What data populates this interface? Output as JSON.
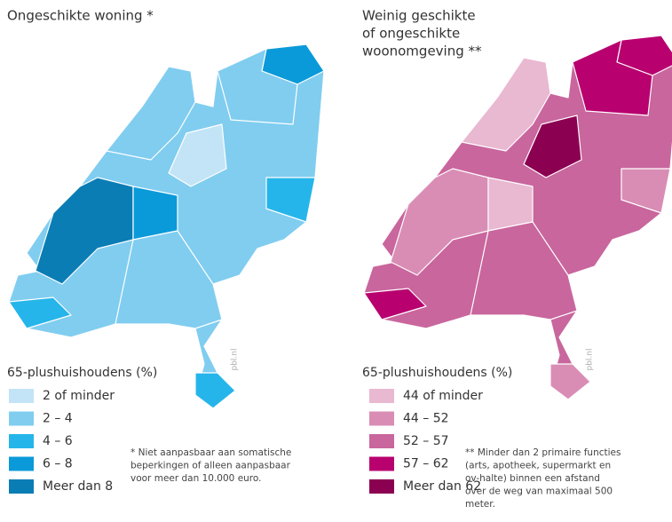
{
  "maps": [
    {
      "title": [
        "Ongeschikte woning *"
      ],
      "legend_title": "65-plushuishoudens (%)",
      "legend": [
        {
          "label": "2 of minder",
          "color": "#c3e4f7"
        },
        {
          "label": "2 – 4",
          "color": "#80cdf0"
        },
        {
          "label": "4 – 6",
          "color": "#25b5ea"
        },
        {
          "label": "6 – 8",
          "color": "#0a9ad9"
        },
        {
          "label": "Meer dan 8",
          "color": "#0b7db5"
        }
      ],
      "footnote": [
        "* Niet aanpasbaar aan somatische",
        "beperkingen of alleen aanpasbaar",
        "voor meer dan 10.000 euro."
      ],
      "credit": "pbl.nl"
    },
    {
      "title": [
        "Weinig geschikte",
        "of ongeschikte",
        "woonomgeving **"
      ],
      "legend_title": "65-plushuishoudens (%)",
      "legend": [
        {
          "label": "44 of minder",
          "color": "#e9b8d1"
        },
        {
          "label": "44 – 52",
          "color": "#d98db5"
        },
        {
          "label": "52 – 57",
          "color": "#c9669d"
        },
        {
          "label": "57 – 62",
          "color": "#b8006f"
        },
        {
          "label": "Meer dan 62",
          "color": "#8c0052"
        }
      ],
      "footnote": [
        "** Minder dan 2 primaire functies",
        "(arts, apotheek, supermarkt en",
        "ov-halte) binnen een afstand",
        "over de weg van maximaal 500",
        "meter."
      ],
      "credit": "pbl.nl"
    }
  ]
}
